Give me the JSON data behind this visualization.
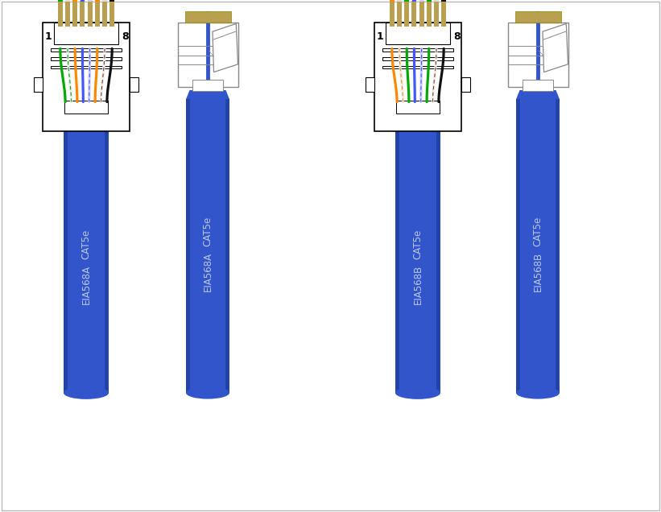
{
  "background": "#ffffff",
  "border_color": "#000000",
  "cable_color": "#3355cc",
  "cable_label_color": "#b8c8e8",
  "tan_color": "#b8a050",
  "wire_colors_568A": [
    "#00aa00",
    "#eeeeee",
    "#ff8800",
    "#4455ff",
    "#ccccff",
    "#ff8800",
    "#eeeeee",
    "#111111"
  ],
  "wire_stripes_568A": [
    null,
    "#00aa00",
    null,
    null,
    "#4455ff",
    null,
    "#774422",
    null
  ],
  "wire_colors_568B": [
    "#ff8800",
    "#eeeeee",
    "#00aa00",
    "#4455ff",
    "#ccccff",
    "#00aa00",
    "#eeeeee",
    "#111111"
  ],
  "wire_stripes_568B": [
    null,
    "#ff8800",
    null,
    null,
    "#4455ff",
    null,
    "#774422",
    null
  ],
  "label_A": [
    "CAT5e",
    "EIA568A"
  ],
  "label_B": [
    "CAT5e",
    "EIA568B"
  ],
  "shade_color": "#2244aa",
  "connector_border": "#555555",
  "side_border": "#888888"
}
